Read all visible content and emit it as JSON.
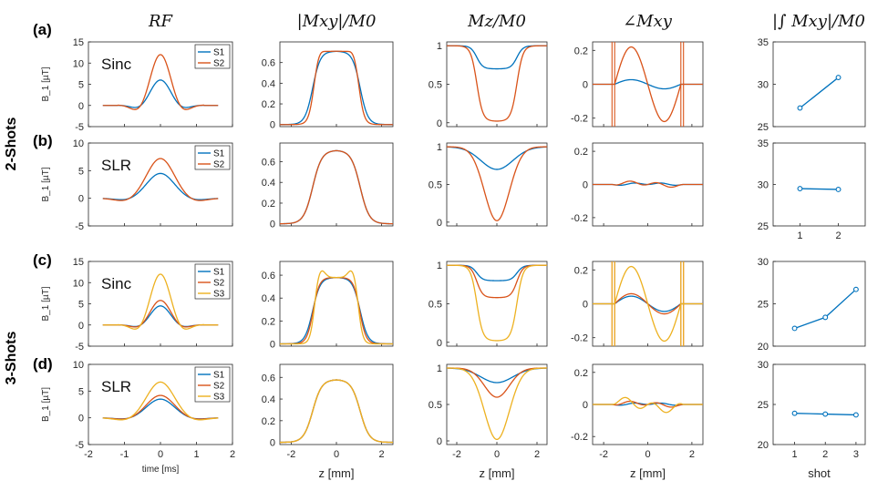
{
  "figure": {
    "column_headers": [
      "RF",
      "|Mxy|/M0",
      "Mz/M0",
      "∠Mxy",
      "|∫ Mxy|/M0"
    ],
    "row_groups": [
      "2-Shots",
      "3-Shots"
    ],
    "panel_labels": [
      "(a)",
      "(b)",
      "(c)",
      "(d)"
    ],
    "pulse_types": [
      "Sinc",
      "SLR",
      "Sinc",
      "SLR"
    ]
  },
  "colors": {
    "S1": "#0072BD",
    "S2": "#D95319",
    "S3": "#EDB120",
    "axis": "#262626"
  },
  "chart_data": [
    {
      "type": "line",
      "column": "RF",
      "panels": [
        "a",
        "b",
        "c",
        "d"
      ],
      "xlabel": "time  [ms]",
      "ylabel": "B_1  [µT]",
      "x_range": [
        -2,
        2
      ],
      "xticks": [
        -2,
        -1,
        0,
        1,
        2
      ],
      "rows": [
        {
          "panel": "a",
          "ylim": [
            -5,
            15
          ],
          "yticks": [
            -5,
            0,
            5,
            10,
            15
          ],
          "legend": [
            "S1",
            "S2"
          ],
          "peaks": {
            "S1": 6,
            "S2": 12
          },
          "x_support": [
            -1.2,
            1.2
          ]
        },
        {
          "panel": "b",
          "ylim": [
            -5,
            10
          ],
          "yticks": [
            -5,
            0,
            5,
            10
          ],
          "legend": [
            "S1",
            "S2"
          ],
          "peaks": {
            "S1": 4.5,
            "S2": 7.2
          },
          "x_support": [
            -2,
            2
          ]
        },
        {
          "panel": "c",
          "ylim": [
            -5,
            15
          ],
          "yticks": [
            -5,
            0,
            5,
            10,
            15
          ],
          "legend": [
            "S1",
            "S2",
            "S3"
          ],
          "peaks": {
            "S1": 4.5,
            "S2": 5.8,
            "S3": 12
          },
          "x_support": [
            -1.2,
            1.2
          ]
        },
        {
          "panel": "d",
          "ylim": [
            -5,
            10
          ],
          "yticks": [
            -5,
            0,
            5,
            10
          ],
          "legend": [
            "S1",
            "S2",
            "S3"
          ],
          "peaks": {
            "S1": 3.5,
            "S2": 4.2,
            "S3": 6.7
          },
          "x_support": [
            -2,
            2
          ]
        }
      ]
    },
    {
      "type": "line",
      "column": "|Mxy|/M0",
      "xlabel": "z  [mm]",
      "x_range": [
        -2.5,
        2.5
      ],
      "xticks": [
        -2,
        0,
        2
      ],
      "rows": [
        {
          "panel": "a",
          "ylim": [
            -0.02,
            0.8
          ],
          "yticks": [
            0,
            0.2,
            0.4,
            0.6
          ],
          "plateau": 0.71,
          "overshoot": 0.74
        },
        {
          "panel": "b",
          "ylim": [
            -0.02,
            0.78
          ],
          "yticks": [
            0,
            0.2,
            0.4,
            0.6
          ],
          "plateau": 0.71
        },
        {
          "panel": "c",
          "ylim": [
            -0.02,
            0.72
          ],
          "yticks": [
            0,
            0.2,
            0.4,
            0.6
          ],
          "plateau": 0.58,
          "overshoot": 0.66
        },
        {
          "panel": "d",
          "ylim": [
            -0.02,
            0.72
          ],
          "yticks": [
            0,
            0.2,
            0.4,
            0.6
          ],
          "plateau": 0.58
        }
      ]
    },
    {
      "type": "line",
      "column": "Mz/M0",
      "xlabel": "z  [mm]",
      "x_range": [
        -2.5,
        2.5
      ],
      "xticks": [
        -2,
        0,
        2
      ],
      "rows": [
        {
          "panel": "a",
          "ylim": [
            -0.05,
            1.05
          ],
          "yticks": [
            0,
            0.5,
            1
          ],
          "minima": {
            "S1": 0.7,
            "S2": 0.02
          }
        },
        {
          "panel": "b",
          "ylim": [
            -0.05,
            1.05
          ],
          "yticks": [
            0,
            0.5,
            1
          ],
          "minima": {
            "S1": 0.7,
            "S2": 0.02
          }
        },
        {
          "panel": "c",
          "ylim": [
            -0.05,
            1.05
          ],
          "yticks": [
            0,
            0.5,
            1
          ],
          "minima": {
            "S1": 0.8,
            "S2": 0.58,
            "S3": 0.02
          }
        },
        {
          "panel": "d",
          "ylim": [
            -0.05,
            1.05
          ],
          "yticks": [
            0,
            0.5,
            1
          ],
          "minima": {
            "S1": 0.8,
            "S2": 0.6,
            "S3": 0.02
          }
        }
      ]
    },
    {
      "type": "line",
      "column": "∠Mxy",
      "xlabel": "z  [mm]",
      "x_range": [
        -2.5,
        2.5
      ],
      "xticks": [
        -2,
        0,
        2
      ],
      "ylim": [
        -0.25,
        0.25
      ],
      "yticks": [
        -0.2,
        0,
        0.2
      ],
      "rows": [
        {
          "panel": "a",
          "amplitude": {
            "S1": 0.03,
            "S2": 0.22
          }
        },
        {
          "panel": "b",
          "amplitude": {
            "S1": 0.01,
            "S2": 0.02
          }
        },
        {
          "panel": "c",
          "amplitude": {
            "S1": 0.05,
            "S2": 0.06,
            "S3": 0.22
          }
        },
        {
          "panel": "d",
          "amplitude": {
            "S1": 0.01,
            "S2": 0.02,
            "S3": 0.05
          }
        }
      ]
    },
    {
      "type": "line",
      "column": "|∫ Mxy|/M0",
      "xlabel": "shot",
      "series_color": "S1",
      "rows": [
        {
          "panel": "a",
          "ylim": [
            25,
            35
          ],
          "yticks": [
            25,
            30,
            35
          ],
          "xlim": [
            0.3,
            2.7
          ],
          "x": [
            1,
            2
          ],
          "values": [
            27.2,
            30.8
          ]
        },
        {
          "panel": "b",
          "ylim": [
            25,
            35
          ],
          "yticks": [
            25,
            30,
            35
          ],
          "xlim": [
            0.3,
            2.7
          ],
          "xticks": [
            1,
            2
          ],
          "x": [
            1,
            2
          ],
          "values": [
            29.5,
            29.4
          ]
        },
        {
          "panel": "c",
          "ylim": [
            20,
            30
          ],
          "yticks": [
            20,
            25,
            30
          ],
          "xlim": [
            0.3,
            3.3
          ],
          "x": [
            1,
            2,
            3
          ],
          "values": [
            22.1,
            23.4,
            26.7
          ]
        },
        {
          "panel": "d",
          "ylim": [
            20,
            30
          ],
          "yticks": [
            20,
            25,
            30
          ],
          "xlim": [
            0.3,
            3.3
          ],
          "xticks": [
            1,
            2,
            3
          ],
          "x": [
            1,
            2,
            3
          ],
          "values": [
            23.9,
            23.8,
            23.7
          ]
        }
      ]
    }
  ]
}
